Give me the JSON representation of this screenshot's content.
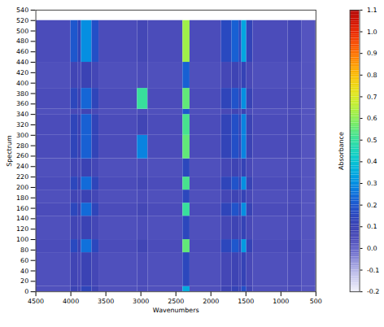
{
  "chart_data": {
    "type": "heatmap",
    "xlabel": "Wavenumbers",
    "ylabel": "Spectrum",
    "colorbar_label": "Absorbance",
    "xlim": [
      4500,
      500
    ],
    "xticks": [
      4500,
      4000,
      3500,
      3000,
      2500,
      2000,
      1500,
      1000,
      500
    ],
    "ylim": [
      0,
      540
    ],
    "yticks": [
      0,
      20,
      40,
      60,
      80,
      100,
      120,
      140,
      160,
      180,
      200,
      220,
      240,
      260,
      280,
      300,
      320,
      340,
      360,
      380,
      400,
      420,
      440,
      460,
      480,
      500,
      520,
      540
    ],
    "x_bins": [
      4500,
      4000,
      3900,
      3850,
      3700,
      3600,
      3050,
      2900,
      2400,
      2300,
      1850,
      1700,
      1600,
      1560,
      1490,
      1400,
      900,
      700,
      500
    ],
    "y_bins": [
      0,
      10,
      75,
      100,
      145,
      170,
      195,
      220,
      255,
      300,
      340,
      350,
      390,
      440,
      520
    ],
    "values": [
      [
        0.04,
        0.1,
        0.07,
        0.14,
        0.09,
        0.04,
        0.05,
        0.04,
        0.35,
        0.04,
        0.09,
        0.12,
        0.09,
        0.18,
        0.08,
        0.04,
        0.05,
        0.03
      ],
      [
        0.04,
        0.08,
        0.06,
        0.1,
        0.07,
        0.04,
        0.05,
        0.04,
        0.15,
        0.04,
        0.07,
        0.09,
        0.07,
        0.12,
        0.06,
        0.04,
        0.05,
        0.03
      ],
      [
        0.05,
        0.16,
        0.1,
        0.25,
        0.15,
        0.05,
        0.08,
        0.05,
        0.55,
        0.05,
        0.15,
        0.2,
        0.15,
        0.32,
        0.12,
        0.05,
        0.07,
        0.03
      ],
      [
        0.04,
        0.08,
        0.06,
        0.1,
        0.07,
        0.04,
        0.05,
        0.04,
        0.15,
        0.04,
        0.07,
        0.09,
        0.07,
        0.12,
        0.06,
        0.04,
        0.05,
        0.03
      ],
      [
        0.05,
        0.15,
        0.1,
        0.24,
        0.14,
        0.05,
        0.07,
        0.05,
        0.5,
        0.05,
        0.14,
        0.19,
        0.14,
        0.3,
        0.11,
        0.05,
        0.06,
        0.03
      ],
      [
        0.04,
        0.08,
        0.06,
        0.1,
        0.07,
        0.04,
        0.05,
        0.04,
        0.15,
        0.04,
        0.07,
        0.09,
        0.07,
        0.12,
        0.06,
        0.04,
        0.05,
        0.03
      ],
      [
        0.05,
        0.15,
        0.1,
        0.24,
        0.14,
        0.05,
        0.07,
        0.05,
        0.52,
        0.05,
        0.14,
        0.19,
        0.14,
        0.3,
        0.11,
        0.05,
        0.06,
        0.03
      ],
      [
        0.04,
        0.08,
        0.06,
        0.1,
        0.07,
        0.04,
        0.05,
        0.04,
        0.15,
        0.04,
        0.07,
        0.09,
        0.07,
        0.12,
        0.06,
        0.04,
        0.05,
        0.03
      ],
      [
        0.05,
        0.14,
        0.1,
        0.22,
        0.13,
        0.05,
        0.28,
        0.05,
        0.55,
        0.05,
        0.13,
        0.18,
        0.13,
        0.28,
        0.1,
        0.05,
        0.06,
        0.03
      ],
      [
        0.05,
        0.14,
        0.1,
        0.22,
        0.13,
        0.05,
        0.08,
        0.05,
        0.52,
        0.05,
        0.13,
        0.18,
        0.13,
        0.28,
        0.1,
        0.05,
        0.06,
        0.03
      ],
      [
        0.04,
        0.06,
        0.05,
        0.08,
        0.06,
        0.04,
        0.05,
        0.04,
        0.2,
        0.04,
        0.06,
        0.08,
        0.06,
        0.1,
        0.05,
        0.04,
        0.05,
        0.03
      ],
      [
        0.05,
        0.15,
        0.1,
        0.23,
        0.14,
        0.05,
        0.5,
        0.05,
        0.55,
        0.05,
        0.14,
        0.19,
        0.14,
        0.3,
        0.11,
        0.05,
        0.06,
        0.03
      ],
      [
        0.04,
        0.08,
        0.06,
        0.1,
        0.07,
        0.04,
        0.05,
        0.04,
        0.22,
        0.04,
        0.07,
        0.09,
        0.07,
        0.12,
        0.06,
        0.04,
        0.05,
        0.03
      ],
      [
        0.05,
        0.2,
        0.14,
        0.3,
        0.18,
        0.05,
        0.07,
        0.05,
        0.62,
        0.05,
        0.16,
        0.22,
        0.16,
        0.34,
        0.13,
        0.05,
        0.07,
        0.03
      ]
    ],
    "zlim": [
      -0.2,
      1.1
    ],
    "zticks": [
      -0.2,
      -0.1,
      {
        "value": 0,
        "label": "0.0"
      },
      0.1,
      0.2,
      0.3,
      0.4,
      0.5,
      0.6,
      0.7,
      0.8,
      0.9,
      {
        "value": 1,
        "label": "1.0"
      },
      1.1
    ]
  }
}
